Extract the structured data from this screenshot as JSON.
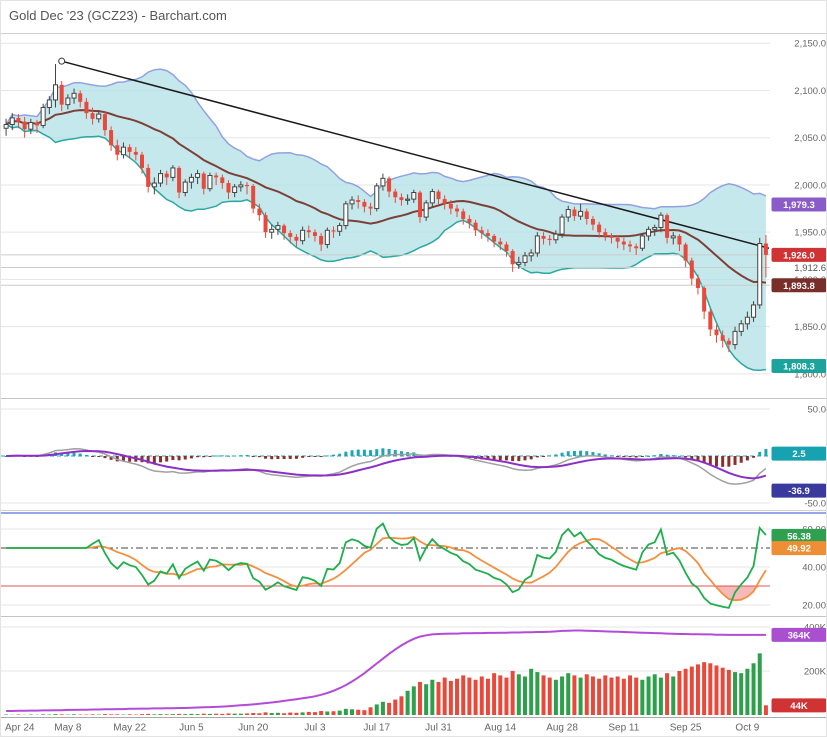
{
  "header": {
    "title": "Gold Dec '23 (GCZ23) - Barchart.com"
  },
  "x_axis": {
    "tick_labels": [
      "Apr 24",
      "May 8",
      "May 22",
      "Jun 5",
      "Jun 20",
      "Jul 3",
      "Jul 17",
      "Jul 31",
      "Aug 14",
      "Aug 28",
      "Sep 11",
      "Sep 25",
      "Oct 9"
    ],
    "tick_interval": 10
  },
  "colors": {
    "up_candle": "#ffffff",
    "up_outline": "#444444",
    "down_candle": "#e8493a",
    "band_fill": "rgba(178,224,230,0.75)",
    "band_upper": "#93a1e0",
    "band_lower": "#2aa8a2",
    "sma": "#7c4037",
    "trendline": "#1a1a1a",
    "macd_pos": "#1fa4b4",
    "macd_neg": "#8c2f2a",
    "macd_line": "#a0a0a0",
    "macd_signal": "#8c2fc7",
    "rsi_fast": "#1fae4e",
    "rsi_slow": "#f29040",
    "rsi_mid": "#444444",
    "rsi_low": "#e25555",
    "rsi_oversold_fill": "rgba(226,70,70,0.38)",
    "vol_up": "#2ca04a",
    "vol_down": "#e8493a",
    "open_interest": "#b44bd8",
    "grid": "#e5e5e5",
    "axis_text": "#666666",
    "separator": "#c4c4c4",
    "separator_blue": "#98a6e8"
  },
  "chart_data": [
    {
      "type": "candlestick",
      "name": "price-panel",
      "yticks": [
        {
          "label": "2,150.0",
          "value": 2150
        },
        {
          "label": "2,100.0",
          "value": 2100
        },
        {
          "label": "2,050.0",
          "value": 2050
        },
        {
          "label": "2,000.0",
          "value": 2000
        },
        {
          "label": "1,950.0",
          "value": 1950
        },
        {
          "label": "1,900.0",
          "value": 1900
        },
        {
          "label": "1,850.0",
          "value": 1850
        },
        {
          "label": "1,800.0",
          "value": 1800
        }
      ],
      "badges": [
        {
          "name": "bollinger-upper-badge",
          "label": "1,979.3",
          "value": 1979.3,
          "color": "#8a5cc8"
        },
        {
          "name": "last-price-badge",
          "label": "1,926.0",
          "value": 1926.0,
          "color": "#cf3333"
        },
        {
          "name": "prior-value-label",
          "label": "1,912.6",
          "value": 1912.6,
          "color": null
        },
        {
          "name": "moving-average-badge",
          "label": "1,893.8",
          "value": 1893.8,
          "color": "#7a2e2a"
        },
        {
          "name": "bollinger-lower-badge",
          "label": "1,808.3",
          "value": 1808.3,
          "color": "#1ba39c"
        }
      ],
      "last_value_lines": [
        1926.0,
        1912.6,
        1893.8
      ],
      "indicators": {
        "sma_period": 20,
        "bollinger_period": 20,
        "bollinger_mult": 2
      },
      "trendline": {
        "from_index": 9,
        "from_price": 2131,
        "to_index": 124,
        "to_price": 1933
      },
      "candles": [
        [
          2060,
          2070,
          2052,
          2064
        ],
        [
          2064,
          2076,
          2058,
          2071
        ],
        [
          2071,
          2075,
          2060,
          2067
        ],
        [
          2067,
          2072,
          2050,
          2059
        ],
        [
          2059,
          2070,
          2054,
          2066
        ],
        [
          2066,
          2069,
          2055,
          2063
        ],
        [
          2063,
          2086,
          2060,
          2082
        ],
        [
          2082,
          2094,
          2075,
          2090
        ],
        [
          2090,
          2128,
          2082,
          2106
        ],
        [
          2106,
          2110,
          2078,
          2085
        ],
        [
          2085,
          2096,
          2080,
          2092
        ],
        [
          2092,
          2102,
          2086,
          2097
        ],
        [
          2097,
          2100,
          2082,
          2088
        ],
        [
          2088,
          2092,
          2070,
          2076
        ],
        [
          2076,
          2082,
          2064,
          2070
        ],
        [
          2070,
          2079,
          2066,
          2075
        ],
        [
          2075,
          2077,
          2052,
          2058
        ],
        [
          2058,
          2062,
          2036,
          2042
        ],
        [
          2042,
          2048,
          2026,
          2032
        ],
        [
          2032,
          2045,
          2028,
          2040
        ],
        [
          2040,
          2043,
          2028,
          2035
        ],
        [
          2035,
          2040,
          2026,
          2032
        ],
        [
          2032,
          2035,
          2012,
          2018
        ],
        [
          2018,
          2022,
          1992,
          1998
        ],
        [
          1998,
          2008,
          1990,
          2002
        ],
        [
          2002,
          2016,
          1998,
          2012
        ],
        [
          2012,
          2015,
          2000,
          2008
        ],
        [
          2008,
          2021,
          2004,
          2018
        ],
        [
          2018,
          2020,
          1986,
          1992
        ],
        [
          1992,
          2006,
          1988,
          2003
        ],
        [
          2003,
          2012,
          1996,
          2008
        ],
        [
          2008,
          2016,
          2001,
          2012
        ],
        [
          2012,
          2014,
          1990,
          1996
        ],
        [
          1996,
          2013,
          1993,
          2010
        ],
        [
          2010,
          2013,
          2000,
          2008
        ],
        [
          2008,
          2011,
          1996,
          2002
        ],
        [
          2002,
          2005,
          1985,
          1992
        ],
        [
          1992,
          2001,
          1987,
          1998
        ],
        [
          1998,
          2004,
          1993,
          2000
        ],
        [
          2000,
          2003,
          1990,
          1999
        ],
        [
          1999,
          2001,
          1970,
          1975
        ],
        [
          1975,
          1980,
          1962,
          1968
        ],
        [
          1968,
          1971,
          1944,
          1950
        ],
        [
          1950,
          1958,
          1943,
          1953
        ],
        [
          1953,
          1961,
          1947,
          1957
        ],
        [
          1957,
          1959,
          1942,
          1949
        ],
        [
          1949,
          1952,
          1938,
          1945
        ],
        [
          1945,
          1948,
          1934,
          1941
        ],
        [
          1941,
          1956,
          1937,
          1952
        ],
        [
          1952,
          1957,
          1944,
          1950
        ],
        [
          1950,
          1953,
          1940,
          1946
        ],
        [
          1946,
          1949,
          1930,
          1937
        ],
        [
          1937,
          1955,
          1933,
          1952
        ],
        [
          1952,
          1956,
          1944,
          1951
        ],
        [
          1951,
          1960,
          1946,
          1957
        ],
        [
          1957,
          1983,
          1953,
          1980
        ],
        [
          1980,
          1988,
          1974,
          1984
        ],
        [
          1984,
          1989,
          1975,
          1982
        ],
        [
          1982,
          1985,
          1971,
          1977
        ],
        [
          1977,
          1981,
          1968,
          1975
        ],
        [
          1975,
          2002,
          1972,
          1999
        ],
        [
          1999,
          2012,
          1994,
          2007
        ],
        [
          2007,
          2009,
          1987,
          1993
        ],
        [
          1993,
          1996,
          1981,
          1987
        ],
        [
          1987,
          1991,
          1978,
          1984
        ],
        [
          1984,
          1990,
          1979,
          1985
        ],
        [
          1985,
          1995,
          1981,
          1992
        ],
        [
          1992,
          1994,
          1960,
          1966
        ],
        [
          1966,
          1984,
          1962,
          1981
        ],
        [
          1981,
          1996,
          1977,
          1993
        ],
        [
          1993,
          1995,
          1979,
          1985
        ],
        [
          1985,
          1989,
          1974,
          1980
        ],
        [
          1980,
          1984,
          1969,
          1975
        ],
        [
          1975,
          1979,
          1966,
          1972
        ],
        [
          1972,
          1975,
          1958,
          1964
        ],
        [
          1964,
          1968,
          1954,
          1960
        ],
        [
          1960,
          1963,
          1946,
          1952
        ],
        [
          1952,
          1956,
          1943,
          1949
        ],
        [
          1949,
          1953,
          1940,
          1946
        ],
        [
          1946,
          1948,
          1934,
          1940
        ],
        [
          1940,
          1944,
          1931,
          1937
        ],
        [
          1937,
          1940,
          1924,
          1930
        ],
        [
          1930,
          1932,
          1908,
          1916
        ],
        [
          1916,
          1924,
          1911,
          1918
        ],
        [
          1918,
          1929,
          1914,
          1925
        ],
        [
          1925,
          1932,
          1919,
          1928
        ],
        [
          1928,
          1950,
          1924,
          1946
        ],
        [
          1946,
          1950,
          1937,
          1943
        ],
        [
          1943,
          1947,
          1936,
          1942
        ],
        [
          1942,
          1952,
          1938,
          1948
        ],
        [
          1948,
          1969,
          1944,
          1966
        ],
        [
          1966,
          1978,
          1961,
          1974
        ],
        [
          1974,
          1977,
          1962,
          1967
        ],
        [
          1967,
          1980,
          1963,
          1972
        ],
        [
          1972,
          1975,
          1958,
          1964
        ],
        [
          1964,
          1967,
          1952,
          1958
        ],
        [
          1958,
          1961,
          1944,
          1950
        ],
        [
          1950,
          1954,
          1941,
          1946
        ],
        [
          1946,
          1949,
          1938,
          1944
        ],
        [
          1944,
          1947,
          1933,
          1940
        ],
        [
          1940,
          1944,
          1931,
          1937
        ],
        [
          1937,
          1941,
          1929,
          1935
        ],
        [
          1935,
          1938,
          1926,
          1933
        ],
        [
          1933,
          1949,
          1930,
          1946
        ],
        [
          1946,
          1956,
          1941,
          1953
        ],
        [
          1953,
          1958,
          1946,
          1955
        ],
        [
          1955,
          1971,
          1950,
          1968
        ],
        [
          1968,
          1970,
          1938,
          1944
        ],
        [
          1944,
          1950,
          1937,
          1946
        ],
        [
          1946,
          1948,
          1930,
          1937
        ],
        [
          1937,
          1939,
          1913,
          1920
        ],
        [
          1920,
          1923,
          1894,
          1901
        ],
        [
          1901,
          1905,
          1884,
          1891
        ],
        [
          1891,
          1893,
          1858,
          1866
        ],
        [
          1866,
          1869,
          1840,
          1847
        ],
        [
          1847,
          1852,
          1833,
          1841
        ],
        [
          1841,
          1846,
          1828,
          1835
        ],
        [
          1835,
          1838,
          1823,
          1831
        ],
        [
          1831,
          1850,
          1826,
          1845
        ],
        [
          1845,
          1857,
          1840,
          1853
        ],
        [
          1853,
          1866,
          1847,
          1860
        ],
        [
          1860,
          1877,
          1855,
          1873
        ],
        [
          1873,
          1944,
          1869,
          1938
        ],
        [
          1938,
          1947,
          1902,
          1926
        ]
      ]
    },
    {
      "type": "macd",
      "name": "macd-panel",
      "params": {
        "fast": 12,
        "slow": 26,
        "signal": 9
      },
      "yticks": [
        {
          "label": "50.0",
          "value": 50
        },
        {
          "label": "-50.0",
          "value": -50
        }
      ],
      "badges": [
        {
          "name": "macd-histogram-badge",
          "label": "2.5",
          "value": 2.5,
          "color": "#17a2b2"
        },
        {
          "name": "macd-value-badge",
          "label": "-36.9",
          "value": -36.9,
          "color": "#3a3a9e"
        }
      ]
    },
    {
      "type": "rsi",
      "name": "rsi-panel",
      "params": {
        "period": 14,
        "smooth": 7
      },
      "yticks": [
        {
          "label": "60.00",
          "value": 60
        },
        {
          "label": "40.00",
          "value": 40
        },
        {
          "label": "20.00",
          "value": 20
        }
      ],
      "ref_lines": [
        {
          "value": 50,
          "style": "dashdot"
        },
        {
          "value": 30,
          "style": "solid-red"
        }
      ],
      "oversold_level": 30,
      "badges": [
        {
          "name": "rsi-fast-badge",
          "label": "56.38",
          "value": 56.38,
          "color": "#2fa050"
        },
        {
          "name": "rsi-slow-badge",
          "label": "49.92",
          "value": 49.92,
          "color": "#ef8f35"
        }
      ]
    },
    {
      "type": "volume",
      "name": "volume-panel",
      "unit": "K",
      "yticks": [
        {
          "label": "400K",
          "value": 400
        },
        {
          "label": "200K",
          "value": 200
        }
      ],
      "badges": [
        {
          "name": "open-interest-badge",
          "label": "364K",
          "value": 364,
          "color": "#a94fd0"
        },
        {
          "name": "last-volume-badge",
          "label": "44K",
          "value": 44,
          "color": "#cf3333"
        }
      ],
      "volumes": [
        2,
        1,
        2,
        1,
        2,
        1,
        3,
        2,
        4,
        3,
        2,
        3,
        2,
        2,
        3,
        2,
        4,
        3,
        3,
        2,
        3,
        2,
        4,
        5,
        3,
        4,
        3,
        4,
        5,
        4,
        5,
        4,
        6,
        5,
        6,
        5,
        7,
        6,
        6,
        7,
        9,
        8,
        12,
        9,
        10,
        8,
        11,
        10,
        12,
        14,
        13,
        18,
        16,
        17,
        20,
        28,
        26,
        24,
        22,
        35,
        48,
        60,
        55,
        70,
        85,
        110,
        130,
        150,
        140,
        160,
        150,
        170,
        155,
        165,
        180,
        170,
        160,
        175,
        165,
        190,
        180,
        170,
        200,
        185,
        175,
        210,
        195,
        180,
        170,
        160,
        175,
        190,
        180,
        170,
        185,
        175,
        165,
        180,
        170,
        175,
        165,
        180,
        170,
        160,
        175,
        185,
        170,
        190,
        175,
        200,
        210,
        220,
        230,
        240,
        235,
        225,
        215,
        205,
        195,
        190,
        210,
        235,
        280,
        44
      ],
      "open_interest": [
        18,
        18,
        19,
        19,
        20,
        20,
        21,
        21,
        22,
        22,
        23,
        23,
        24,
        24,
        25,
        25,
        26,
        26,
        27,
        27,
        28,
        28,
        29,
        29,
        30,
        30,
        31,
        31,
        32,
        32,
        33,
        34,
        35,
        36,
        37,
        38,
        40,
        42,
        44,
        46,
        48,
        51,
        54,
        57,
        60,
        64,
        68,
        72,
        76,
        80,
        85,
        92,
        100,
        110,
        122,
        136,
        152,
        170,
        190,
        212,
        234,
        256,
        278,
        298,
        316,
        332,
        346,
        356,
        362,
        366,
        368,
        369,
        370,
        370,
        371,
        371,
        372,
        372,
        373,
        373,
        374,
        374,
        375,
        375,
        376,
        376,
        377,
        377,
        378,
        380,
        382,
        383,
        384,
        384,
        383,
        382,
        381,
        380,
        379,
        378,
        377,
        376,
        375,
        374,
        373,
        372,
        371,
        370,
        369,
        368,
        368,
        367,
        367,
        366,
        366,
        365,
        365,
        364,
        364,
        364,
        364,
        364,
        364,
        364
      ]
    }
  ]
}
